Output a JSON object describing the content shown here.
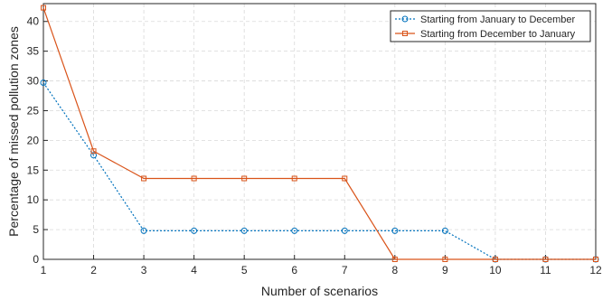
{
  "chart_data": {
    "type": "line",
    "title": "",
    "xlabel": "Number of scenarios",
    "ylabel": "Percentage of missed pollution zones",
    "x": [
      1,
      2,
      3,
      4,
      5,
      6,
      7,
      8,
      9,
      10,
      11,
      12
    ],
    "xlim": [
      1,
      12
    ],
    "ylim": [
      0,
      43
    ],
    "xticks": [
      "1",
      "2",
      "3",
      "4",
      "5",
      "6",
      "7",
      "8",
      "9",
      "10",
      "11",
      "12"
    ],
    "yticks": [
      "0",
      "5",
      "10",
      "15",
      "20",
      "25",
      "30",
      "35",
      "40"
    ],
    "grid": true,
    "legend_position": "top-right",
    "series": [
      {
        "name": "Starting from January to December",
        "color": "#0072BD",
        "line_style": "dotted",
        "marker": "circle",
        "values": [
          29.7,
          17.5,
          4.8,
          4.8,
          4.8,
          4.8,
          4.8,
          4.8,
          4.8,
          0,
          0,
          0
        ]
      },
      {
        "name": "Starting from December to January",
        "color": "#D95319",
        "line_style": "solid",
        "marker": "square",
        "values": [
          42.3,
          18.2,
          13.6,
          13.6,
          13.6,
          13.6,
          13.6,
          0,
          0,
          0,
          0,
          0
        ]
      }
    ]
  }
}
